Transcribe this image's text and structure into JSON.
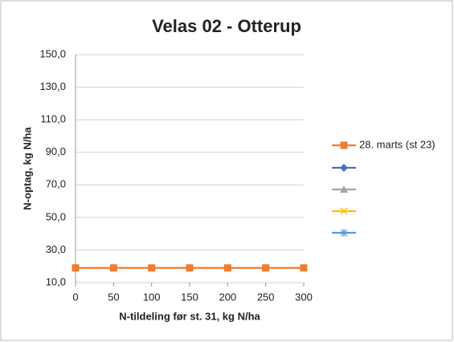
{
  "chart_data": {
    "type": "line",
    "title": "Velas 02 - Otterup",
    "x_label": "N-tildeling før st. 31, kg N/ha",
    "y_label": "N-optag, kg N/ha",
    "x": [
      0,
      50,
      100,
      150,
      200,
      250,
      300
    ],
    "xlim": [
      0,
      300
    ],
    "xticks": [
      0,
      50,
      100,
      150,
      200,
      250,
      300
    ],
    "ylim": [
      10,
      150
    ],
    "yticks": [
      {
        "value": 10,
        "label": "10,0"
      },
      {
        "value": 30,
        "label": "30,0"
      },
      {
        "value": 50,
        "label": "50,0"
      },
      {
        "value": 70,
        "label": "70,0"
      },
      {
        "value": 90,
        "label": "90,0"
      },
      {
        "value": 110,
        "label": "110,0"
      },
      {
        "value": 130,
        "label": "130,0"
      },
      {
        "value": 150,
        "label": "150,0"
      }
    ],
    "grid": true,
    "legend": "right",
    "series": [
      {
        "name": "28. marts (st 23)",
        "color": "#ED7D31",
        "marker": "square",
        "values": [
          19,
          19,
          19,
          19,
          19,
          19,
          19
        ]
      },
      {
        "color": "#4472C4",
        "marker": "diamond"
      },
      {
        "color": "#A5A5A5",
        "marker": "triangle"
      },
      {
        "color": "#FFC000",
        "marker": "x"
      },
      {
        "color": "#5B9BD5",
        "marker": "star"
      }
    ]
  }
}
